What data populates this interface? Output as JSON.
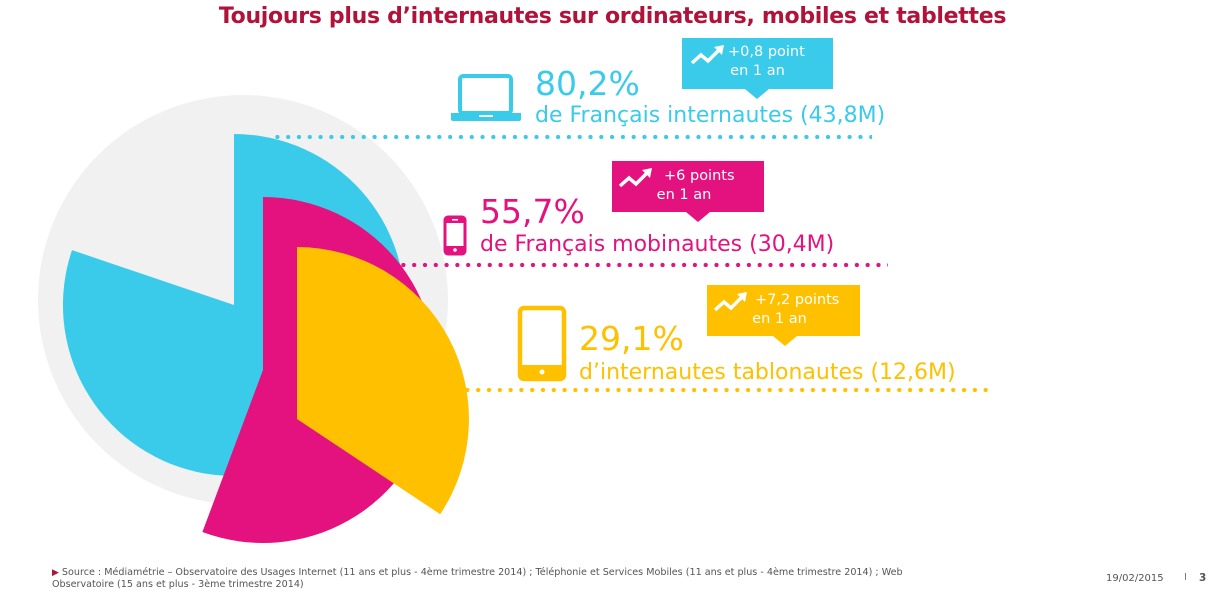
{
  "header": {
    "title": "Toujours plus d’internautes sur ordinateurs, mobiles et tablettes"
  },
  "colors": {
    "title": "#b1123a",
    "cyan": "#3acbea",
    "magenta": "#e3127f",
    "yellow": "#ffc000",
    "grey": "#f1f1f1"
  },
  "chart_data": {
    "type": "pie",
    "title": "Toujours plus d’internautes sur ordinateurs, mobiles et tablettes",
    "series": [
      {
        "name": "internautes",
        "device_icon": "laptop-icon",
        "value": 80.2,
        "unit": "%",
        "value_label": "80,2%",
        "description": "de Français internautes (43,8M)",
        "trend_label": "+0,8 point",
        "trend_period": "en 1 an",
        "color": "#3acbea"
      },
      {
        "name": "mobinautes",
        "device_icon": "smartphone-icon",
        "value": 55.7,
        "unit": "%",
        "value_label": "55,7%",
        "description": "de Français mobinautes (30,4M)",
        "trend_label": "+6 points",
        "trend_period": "en 1 an",
        "color": "#e3127f"
      },
      {
        "name": "tablonautes",
        "device_icon": "tablet-icon",
        "value": 29.1,
        "unit": "%",
        "value_label": "29,1%",
        "description": "d’internautes tablonautes (12,6M)",
        "trend_label": "+7,2 points",
        "trend_period": "en 1 an",
        "color": "#ffc000"
      }
    ]
  },
  "footer": {
    "source_line1": "Source : Médiamétrie – Observatoire des Usages Internet (11 ans et plus - 4ème trimestre 2014) ; Téléphonie et Services Mobiles (11 ans et plus - 4ème trimestre 2014) ; Web",
    "source_line2": "Observatoire (15 ans et plus - 3ème trimestre 2014)",
    "date": "19/02/2015",
    "separator": "I",
    "page_number": "3"
  }
}
